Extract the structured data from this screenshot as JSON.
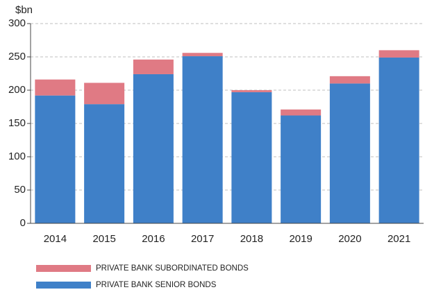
{
  "chart_data": {
    "type": "stacked_bar",
    "y_label": "$bn",
    "categories": [
      "2014",
      "2015",
      "2016",
      "2017",
      "2018",
      "2019",
      "2020",
      "2021"
    ],
    "series": [
      {
        "name": "PRIVATE BANK SUBORDINATED BONDS",
        "color": "#e07a84",
        "values": [
          24,
          32,
          22,
          5,
          3,
          9,
          11,
          11
        ]
      },
      {
        "name": "PRIVATE BANK SENIOR BONDS",
        "color": "#3f80c8",
        "values": [
          192,
          179,
          224,
          251,
          197,
          162,
          210,
          249
        ]
      }
    ],
    "ylim": [
      0,
      300
    ],
    "yticks": [
      0,
      50,
      100,
      150,
      200,
      250,
      300
    ],
    "grid": true
  }
}
